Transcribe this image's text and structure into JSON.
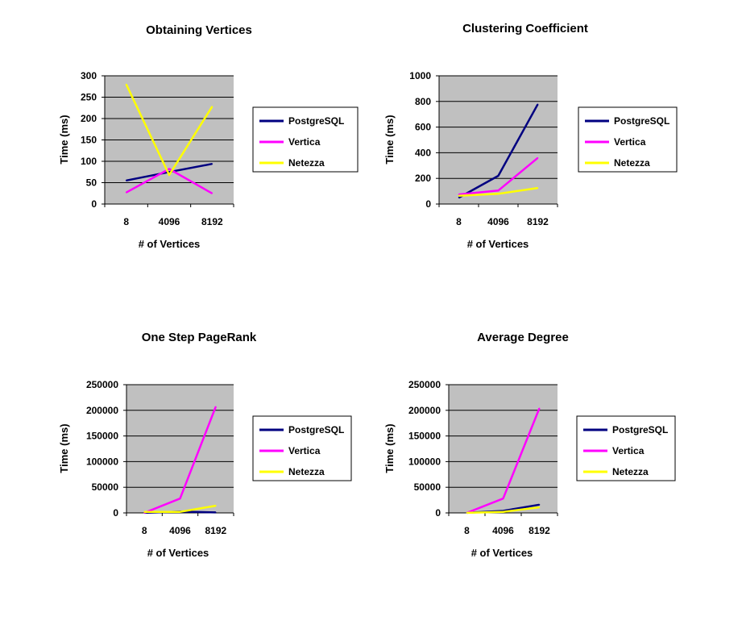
{
  "chart_data": [
    {
      "type": "line",
      "title": "Obtaining Vertices",
      "xlabel": "# of Vertices",
      "ylabel": "Time (ms)",
      "categories": [
        "8",
        "4096",
        "8192"
      ],
      "ylim": [
        0,
        300
      ],
      "yticks": [
        "0",
        "50",
        "100",
        "150",
        "200",
        "250",
        "300"
      ],
      "grid": true,
      "legend": "right",
      "series": [
        {
          "name": "PostgreSQL",
          "color": "#000080",
          "values": [
            55,
            75,
            94
          ]
        },
        {
          "name": "Vertica",
          "color": "#ff00ff",
          "values": [
            27,
            82,
            25
          ]
        },
        {
          "name": "Netezza",
          "color": "#ffff00",
          "values": [
            280,
            68,
            228
          ]
        }
      ]
    },
    {
      "type": "line",
      "title": "Clustering Coefficient",
      "xlabel": "# of Vertices",
      "ylabel": "Time (ms)",
      "categories": [
        "8",
        "4096",
        "8192"
      ],
      "ylim": [
        0,
        1000
      ],
      "yticks": [
        "0",
        "200",
        "400",
        "600",
        "800",
        "1000"
      ],
      "grid": true,
      "legend": "right",
      "series": [
        {
          "name": "PostgreSQL",
          "color": "#000080",
          "values": [
            50,
            220,
            778
          ]
        },
        {
          "name": "Vertica",
          "color": "#ff00ff",
          "values": [
            75,
            105,
            360
          ]
        },
        {
          "name": "Netezza",
          "color": "#ffff00",
          "values": [
            65,
            80,
            125
          ]
        }
      ]
    },
    {
      "type": "line",
      "title": "One Step PageRank",
      "xlabel": "# of Vertices",
      "ylabel": "Time (ms)",
      "categories": [
        "8",
        "4096",
        "8192"
      ],
      "ylim": [
        0,
        250000
      ],
      "yticks": [
        "0",
        "50000",
        "100000",
        "150000",
        "200000",
        "250000"
      ],
      "grid": true,
      "legend": "right",
      "series": [
        {
          "name": "PostgreSQL",
          "color": "#000080",
          "values": [
            100,
            2500,
            1000
          ]
        },
        {
          "name": "Vertica",
          "color": "#ff00ff",
          "values": [
            200,
            28000,
            207000
          ]
        },
        {
          "name": "Netezza",
          "color": "#ffff00",
          "values": [
            2000,
            2000,
            14000
          ]
        }
      ]
    },
    {
      "type": "line",
      "title": "Average Degree",
      "xlabel": "# of Vertices",
      "ylabel": "Time (ms)",
      "categories": [
        "8",
        "4096",
        "8192"
      ],
      "ylim": [
        0,
        250000
      ],
      "yticks": [
        "0",
        "50000",
        "100000",
        "150000",
        "200000",
        "250000"
      ],
      "grid": true,
      "legend": "right",
      "series": [
        {
          "name": "PostgreSQL",
          "color": "#000080",
          "values": [
            100,
            4000,
            16000
          ]
        },
        {
          "name": "Vertica",
          "color": "#ff00ff",
          "values": [
            200,
            28000,
            204000
          ]
        },
        {
          "name": "Netezza",
          "color": "#ffff00",
          "values": [
            100,
            2000,
            11000
          ]
        }
      ]
    }
  ]
}
